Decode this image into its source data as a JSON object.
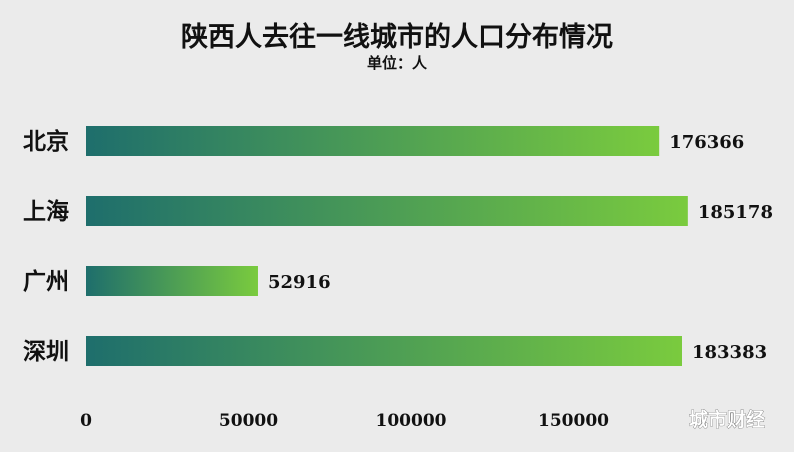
{
  "chart_data": {
    "type": "bar",
    "orientation": "horizontal",
    "title": "陕西人去往一线城市的人口分布情况",
    "subtitle": "单位：人",
    "categories": [
      "北京",
      "上海",
      "广州",
      "深圳"
    ],
    "values": [
      176366,
      185178,
      52916,
      183383
    ],
    "value_labels": [
      "176366",
      "185178",
      "52916",
      "183383"
    ],
    "xticks": [
      0,
      50000,
      100000,
      150000
    ],
    "xtick_labels": [
      "0",
      "50000",
      "100000",
      "150000"
    ],
    "xlim": [
      0,
      200000
    ],
    "grid": false,
    "legend": "none",
    "bar_gradient": [
      "#1e6e6c",
      "#7acb3e"
    ]
  },
  "watermark": "城市财经",
  "colors": {
    "background": "#ebebeb",
    "text": "#111111"
  }
}
